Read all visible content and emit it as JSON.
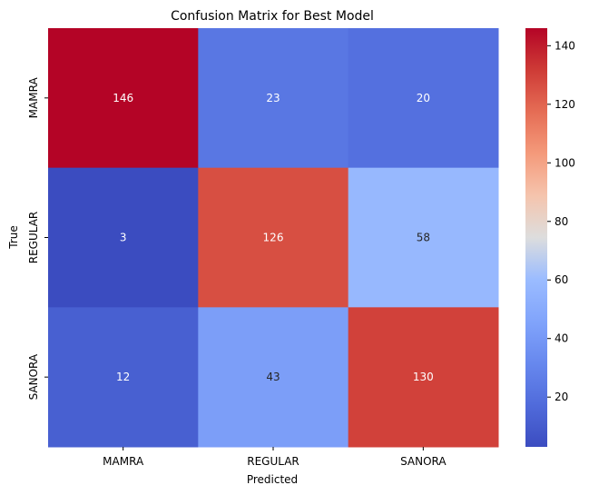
{
  "chart_data": {
    "type": "heatmap",
    "title": "Confusion Matrix for Best Model",
    "xlabel": "Predicted",
    "ylabel": "True",
    "x_categories": [
      "MAMRA",
      "REGULAR",
      "SANORA"
    ],
    "y_categories": [
      "MAMRA",
      "REGULAR",
      "SANORA"
    ],
    "values": [
      [
        146,
        23,
        20
      ],
      [
        3,
        126,
        58
      ],
      [
        12,
        43,
        130
      ]
    ],
    "colormap": "coolwarm",
    "color_range": [
      3,
      146
    ],
    "colorbar_ticks": [
      20,
      40,
      60,
      80,
      100,
      120,
      140
    ],
    "colors": {
      "low": "#3b4cc0",
      "mid": "#dddddd",
      "high": "#b40426"
    }
  }
}
